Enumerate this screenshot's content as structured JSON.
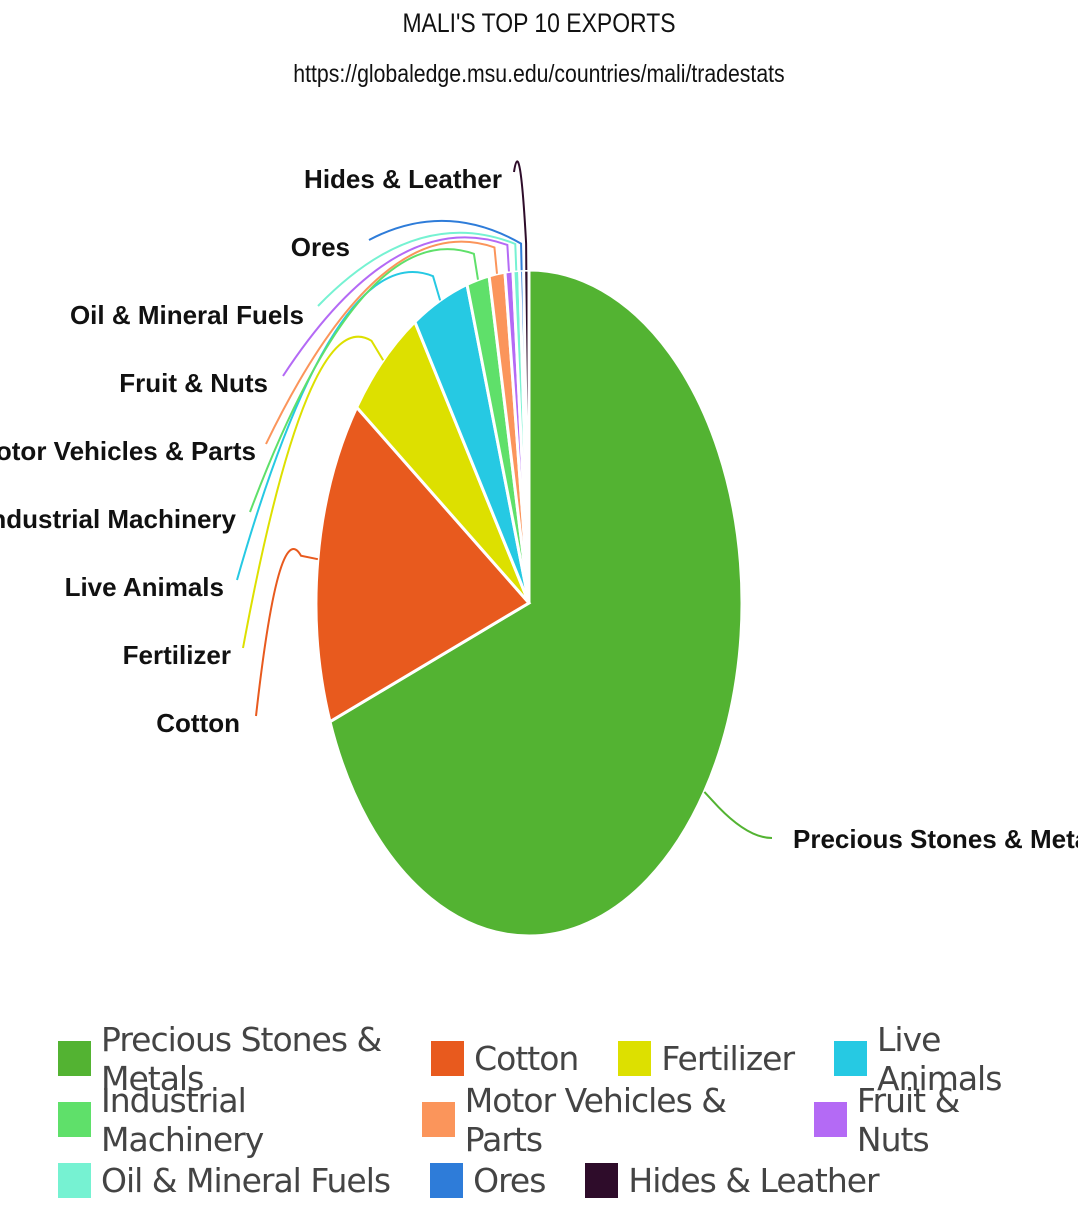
{
  "chart_data": {
    "type": "pie",
    "title": "MALI'S TOP 10 EXPORTS",
    "subtitle": "https://globaledge.msu.edu/countries/mali/tradestats",
    "categories": [
      "Precious Stones & Metals",
      "Cotton",
      "Fertilizer",
      "Live Animals",
      "Industrial Machinery",
      "Motor Vehicles & Parts",
      "Fruit & Nuts",
      "Oil & Mineral Fuels",
      "Ores",
      "Hides & Leather"
    ],
    "values": [
      69.2,
      15.8,
      6.0,
      4.3,
      1.7,
      1.2,
      0.6,
      0.5,
      0.3,
      0.4
    ],
    "colors": [
      "#53b332",
      "#e85a1e",
      "#dde000",
      "#26c9e3",
      "#5fe06a",
      "#fb955b",
      "#b46af5",
      "#76f2d2",
      "#2e7cd9",
      "#2e0c2a"
    ],
    "legend_position": "bottom"
  }
}
